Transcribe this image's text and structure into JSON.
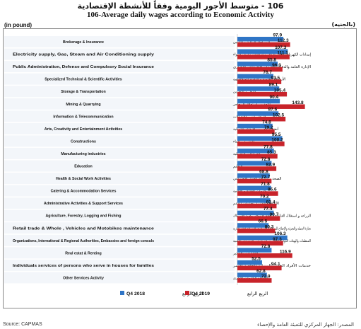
{
  "header": {
    "title_ar": "106 - متوسط الأجور اليومية وفقاً للأنشطة الإقتصادية",
    "title_en": "106-Average daily wages according to Economic Activity",
    "unit_en": "(in pound)",
    "unit_ar": "(بالجنيه)"
  },
  "footer": {
    "source_en": "Source: CAPMAS",
    "source_ar": "المصدر: الجهاز المركزي للتعبئة العامة والإحصاء"
  },
  "colors": {
    "q4_2018": "#2f75c6",
    "q4_2019": "#c8232a",
    "label_tag": "#dde6f2"
  },
  "chart_data": {
    "type": "bar",
    "orientation": "horizontal",
    "title": "106-Average daily wages according to Economic Activity",
    "ylabel": "(in pound)",
    "xlim": [
      0,
      150
    ],
    "grid": false,
    "legend_position": "bottom",
    "categories": [
      {
        "en": "Brokerage & Insurance",
        "ar": "الوساطة المالية و التأمين"
      },
      {
        "en": "Electricity supply, Gas, Steam and Air Conditioning supply",
        "ar": "إمدادات الكهرباء والغاز والبخار و امدادات تكييف الهواء"
      },
      {
        "en": "Public Administration, Defense and Compulsory Social Insurance",
        "ar": "الإدارة العامة والدفاع والضمان الاجتماعي الإجباري"
      },
      {
        "en": "Specialized Technical & Scientific Activities",
        "ar": "الأنشطة العلمية و التقنية المتخصصة"
      },
      {
        "en": "Storage & Transportation",
        "ar": "النقل و التخزين"
      },
      {
        "en": "Mining & Quarrying",
        "ar": "التعدين واستغلال المحاجر"
      },
      {
        "en": "Information & Telecommunication",
        "ar": "المعلومات و الإتصالات"
      },
      {
        "en": "Arts, Creativity and Entertainment Activities",
        "ar": "أنشطة الفنون والإبداع والتسلية"
      },
      {
        "en": "Constructions",
        "ar": "التشييد و البناء"
      },
      {
        "en": "Manufacturing industries",
        "ar": "الصناعات التحويلية"
      },
      {
        "en": "Education",
        "ar": "التعليم"
      },
      {
        "en": "Health & Social Work Activities",
        "ar": "الصحة و أنشطة العمل الإجتماعي"
      },
      {
        "en": "Catering & Accommodation Services",
        "ar": "خدمات الغذاء و الإقامة"
      },
      {
        "en": "Administrative Activities & Support Services",
        "ar": "الأنشطة الإدارية وخدمات الدعم"
      },
      {
        "en": "Agriculture, Forestry, Logging and Fishing",
        "ar": "الزراعة و استغلال الغابات و قطع الأشجار وصيد الأسماك"
      },
      {
        "en": "Retail trade & Whole , Vehicles and Motobikes maintenance",
        "ar": "تجارة الجملة والتجزئة والإصلاح للمركبات ذات المحركات والدراجات النارية"
      },
      {
        "en": "Organizations, International & Regional Authorities, Embassies and foreign consuls",
        "ar": "المنظمات والهيئات الدولية والإقليمية والسفارات والقنصليات الأجنبية"
      },
      {
        "en": "Real estat & Renting",
        "ar": "العقارات والتأجير"
      },
      {
        "en": "Individuals services of persons who serve in houses for families",
        "ar": "خدمات الأفراد الخدمة المنزلية الخاصة للأسر"
      },
      {
        "en": "Other Services Activity",
        "ar": "أنشطة الخدمات الأخرى"
      }
    ],
    "series": [
      {
        "name": "Q4 2018",
        "name_ar": "الربع الرابع",
        "values": [
          97.9,
          107.3,
          85.8,
          76.7,
          89.1,
          90.4,
          87.6,
          74.8,
          95.5,
          77.8,
          72.8,
          68.8,
          71.8,
          70.2,
          77.4,
          66.5,
          106.3,
          72.8,
          52.5,
          62.8
        ]
      },
      {
        "name": "Q4 2019",
        "name_ar": "الربع الرابع",
        "values": [
          112.3,
          111.1,
          96.0,
          93.5,
          105.4,
          143.8,
          102.5,
          79.2,
          100.2,
          85.3,
          82.9,
          72.7,
          86.6,
          83.4,
          90.7,
          80.3,
          97.3,
          116.9,
          94.1,
          72.9
        ]
      }
    ]
  }
}
